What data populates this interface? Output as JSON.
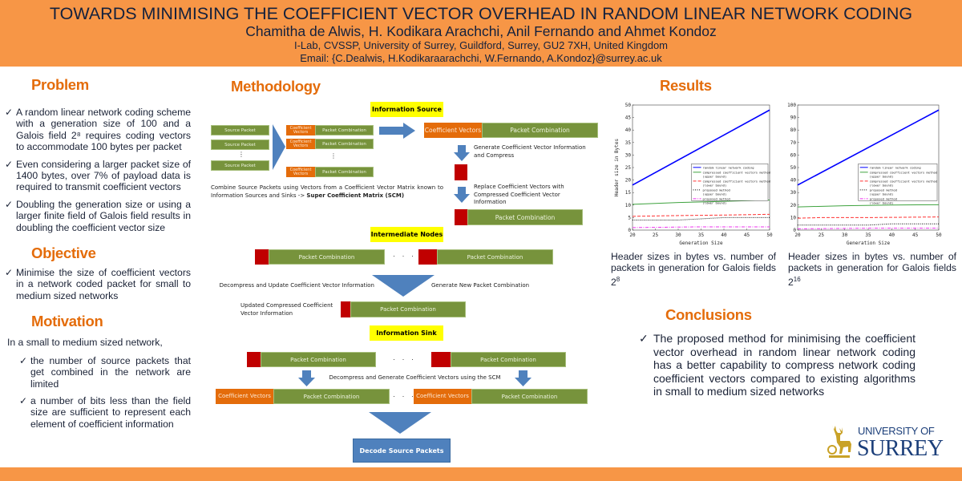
{
  "header": {
    "title": "TOWARDS MINIMISING THE COEFFICIENT VECTOR OVERHEAD IN RANDOM LINEAR NETWORK CODING",
    "authors": "Chamitha de Alwis, H. Kodikara Arachchi, Anil Fernando and Ahmet Kondoz",
    "affiliation": "I-Lab, CVSSP, University of Surrey, Guildford, Surrey, GU2 7XH, United Kingdom",
    "email": "Email: {C.Dealwis, H.Kodikaraarachchi, W.Fernando, A.Kondoz}@surrey.ac.uk"
  },
  "problem": {
    "title": "Problem",
    "bullets": [
      "A random linear network coding scheme with a generation size of 100 and a Galois field 2⁸ requires coding vectors to accommodate 100 bytes per packet",
      "Even considering a larger packet size of 1400 bytes, over 7% of payload data is required to transmit coefficient vectors",
      "Doubling the generation size or using a larger finite field of Galois field results in doubling the coefficient vector size"
    ]
  },
  "objective": {
    "title": "Objective",
    "bullets": [
      "Minimise the size of coefficient vectors in a network coded packet for small to medium sized networks"
    ]
  },
  "motivation": {
    "title": "Motivation",
    "intro": "In a small to medium sized network,",
    "bullets": [
      "the number of source packets that get combined in the network are limited",
      "a number of bits less than the field size are sufficient to represent each element of coefficient information"
    ]
  },
  "methodology": {
    "title": "Methodology",
    "info_source": "Information Source",
    "intermediate": "Intermediate Nodes",
    "info_sink": "Information Sink",
    "source_packet": "Source Packet",
    "coef_vectors": "Coefficient Vectors",
    "packet_combination": "Packet Combination",
    "ellipsis": "· · ·",
    "vdots": "⋮",
    "combine_text": "Combine Source Packets using Vectors from a Coefficient Vector Matrix known to Information Sources and Sinks -> ",
    "combine_bold": "Super Coefficient Matrix (SCM)",
    "generate_text": "Generate Coefficient Vector Information and Compress",
    "replace_text": "Replace Coefficient Vectors with Compressed Coefficient Vector Information",
    "decompress_update": "Decompress and Update Coefficient Vector Information",
    "generate_new": "Generate New Packet Combination",
    "updated_compressed": "Updated Compressed Coefficient Vector Information",
    "decompress_generate": "Decompress and Generate Coefficient Vectors using the SCM",
    "decode": "Decode Source Packets"
  },
  "results": {
    "title": "Results",
    "caption1": "Header sizes in bytes vs. number of packets in generation for Galois fields 2",
    "caption1_sup": "8",
    "caption2": "Header sizes in bytes vs. number of packets in generation for Galois fields 2",
    "caption2_sup": "16"
  },
  "conclusions": {
    "title": "Conclusions",
    "bullets": [
      "The proposed method for minimising the coefficient vector overhead in random linear network coding has a better capability to compress network coding coefficient vectors compared to existing algorithms in small to medium sized networks"
    ]
  },
  "logo": {
    "line1": "UNIVERSITY OF",
    "line2": "SURREY"
  },
  "check_icon": "✓",
  "colors": {
    "header": "#F79646",
    "section": "#E46C0A",
    "green": "#77933C",
    "orange": "#E46C0A",
    "red": "#C00000",
    "arrow": "#4F81BD",
    "yellow": "#FFFF00"
  },
  "chart_data": [
    {
      "type": "line",
      "title": "",
      "xlabel": "Generation Size",
      "ylabel": "Header size in Bytes",
      "xlim": [
        20,
        50
      ],
      "ylim": [
        0,
        50
      ],
      "xticks": [
        20,
        25,
        30,
        35,
        40,
        45,
        50
      ],
      "yticks": [
        0,
        5,
        10,
        15,
        20,
        25,
        30,
        35,
        40,
        45,
        50
      ],
      "legend": "center-right",
      "series": [
        {
          "name": "random linear network coding",
          "x": [
            20,
            50
          ],
          "y": [
            18,
            48
          ],
          "color": "#0000FF",
          "style": "solid"
        },
        {
          "name": "compressed coefficient vectors method (upper bound)",
          "x": [
            20,
            30,
            40,
            50
          ],
          "y": [
            10.3,
            11,
            11.5,
            12
          ],
          "color": "#3fa33f",
          "style": "solid"
        },
        {
          "name": "compressed coefficient vectors method (lower bound)",
          "x": [
            20,
            30,
            40,
            50
          ],
          "y": [
            5.5,
            5.8,
            6,
            6.3
          ],
          "color": "#ff3333",
          "style": "dash"
        },
        {
          "name": "proposed method (upper bound)",
          "x": [
            20,
            30,
            35,
            40,
            50
          ],
          "y": [
            4,
            4,
            4.5,
            5,
            5
          ],
          "color": "#000000",
          "style": "dot"
        },
        {
          "name": "proposed method (lower bound)",
          "x": [
            20,
            35,
            50
          ],
          "y": [
            1,
            1.3,
            1.3
          ],
          "color": "#ee33ee",
          "style": "dashdot"
        }
      ]
    },
    {
      "type": "line",
      "title": "",
      "xlabel": "Generation Size",
      "ylabel": "",
      "xlim": [
        20,
        50
      ],
      "ylim": [
        0,
        100
      ],
      "xticks": [
        20,
        25,
        30,
        35,
        40,
        45,
        50
      ],
      "yticks": [
        0,
        10,
        20,
        30,
        40,
        50,
        60,
        70,
        80,
        90,
        100
      ],
      "legend": "center-right",
      "series": [
        {
          "name": "random linear network coding",
          "x": [
            20,
            50
          ],
          "y": [
            36,
            96
          ],
          "color": "#0000FF",
          "style": "solid"
        },
        {
          "name": "compressed coefficient vectors method (upper bound)",
          "x": [
            20,
            30,
            40,
            50
          ],
          "y": [
            18.5,
            19.5,
            20,
            20.3
          ],
          "color": "#3fa33f",
          "style": "solid"
        },
        {
          "name": "compressed coefficient vectors method (lower bound)",
          "x": [
            20,
            25,
            35,
            50
          ],
          "y": [
            9.5,
            10,
            10,
            10.5
          ],
          "color": "#ff3333",
          "style": "dash"
        },
        {
          "name": "proposed method (upper bound)",
          "x": [
            20,
            35,
            40,
            50
          ],
          "y": [
            4,
            4,
            5,
            5
          ],
          "color": "#000000",
          "style": "dot"
        },
        {
          "name": "proposed method (lower bound)",
          "x": [
            20,
            35,
            50
          ],
          "y": [
            1,
            1.5,
            1.5
          ],
          "color": "#ee33ee",
          "style": "dashdot"
        }
      ]
    }
  ]
}
